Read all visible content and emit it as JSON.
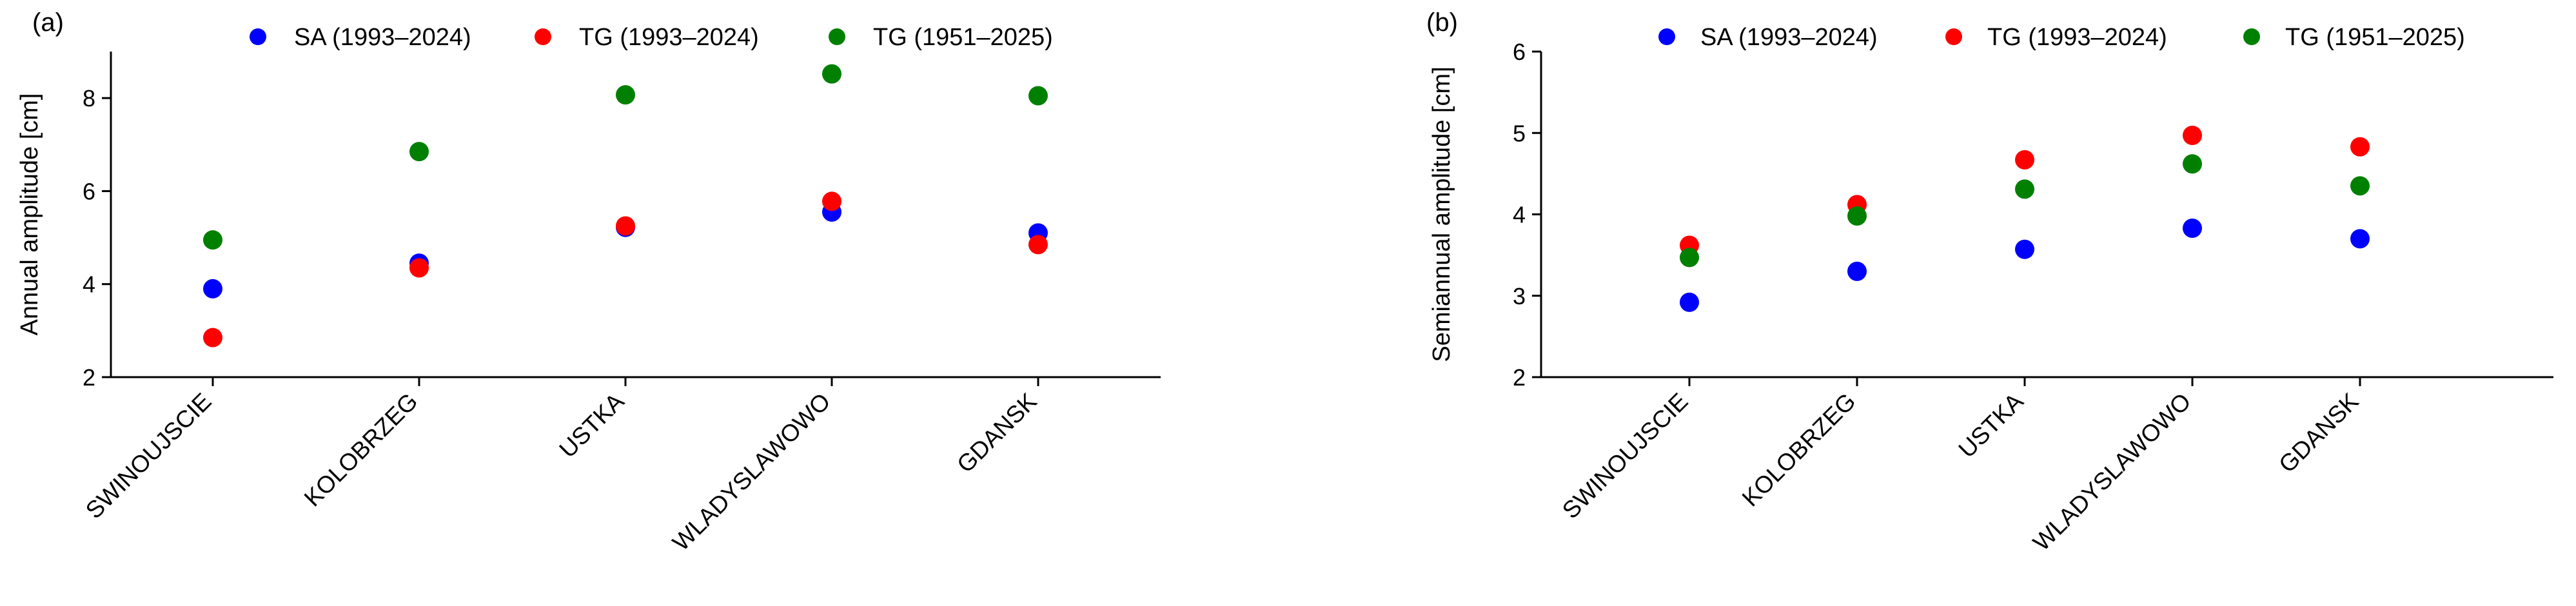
{
  "chart_data": [
    {
      "type": "scatter",
      "panel_label": "(a)",
      "ylabel": "Annual amplitude [cm]",
      "categories": [
        "SWINOUJSCIE",
        "KOLOBRZEG",
        "USTKA",
        "WLADYSLAWOWO",
        "GDANSK"
      ],
      "ylim": [
        2,
        9
      ],
      "yticks": [
        "2",
        "4",
        "6",
        "8"
      ],
      "legend_placement": "top",
      "grid": false,
      "series": [
        {
          "name": "SA (1993–2024)",
          "color": "#0000ff",
          "values": [
            3.9,
            4.45,
            5.22,
            5.55,
            5.1
          ]
        },
        {
          "name": "TG (1993–2024)",
          "color": "#ff0000",
          "values": [
            2.85,
            4.35,
            5.25,
            5.78,
            4.85
          ]
        },
        {
          "name": "TG (1951–2025)",
          "color": "#008000",
          "values": [
            4.95,
            6.85,
            8.07,
            8.52,
            8.05
          ]
        }
      ]
    },
    {
      "type": "scatter",
      "panel_label": "(b)",
      "ylabel": "Semiannual amplitude [cm]",
      "categories": [
        "SWINOUJSCIE",
        "KOLOBRZEG",
        "USTKA",
        "WLADYSLAWOWO",
        "GDANSK"
      ],
      "ylim": [
        2,
        6
      ],
      "yticks": [
        "2",
        "3",
        "4",
        "5",
        "6"
      ],
      "legend_placement": "top",
      "grid": false,
      "series": [
        {
          "name": "SA (1993–2024)",
          "color": "#0000ff",
          "values": [
            2.92,
            3.3,
            3.57,
            3.83,
            3.7
          ]
        },
        {
          "name": "TG (1993–2024)",
          "color": "#ff0000",
          "values": [
            3.62,
            4.12,
            4.67,
            4.97,
            4.83
          ]
        },
        {
          "name": "TG (1951–2025)",
          "color": "#008000",
          "values": [
            3.47,
            3.98,
            4.31,
            4.62,
            4.35
          ]
        }
      ]
    }
  ]
}
